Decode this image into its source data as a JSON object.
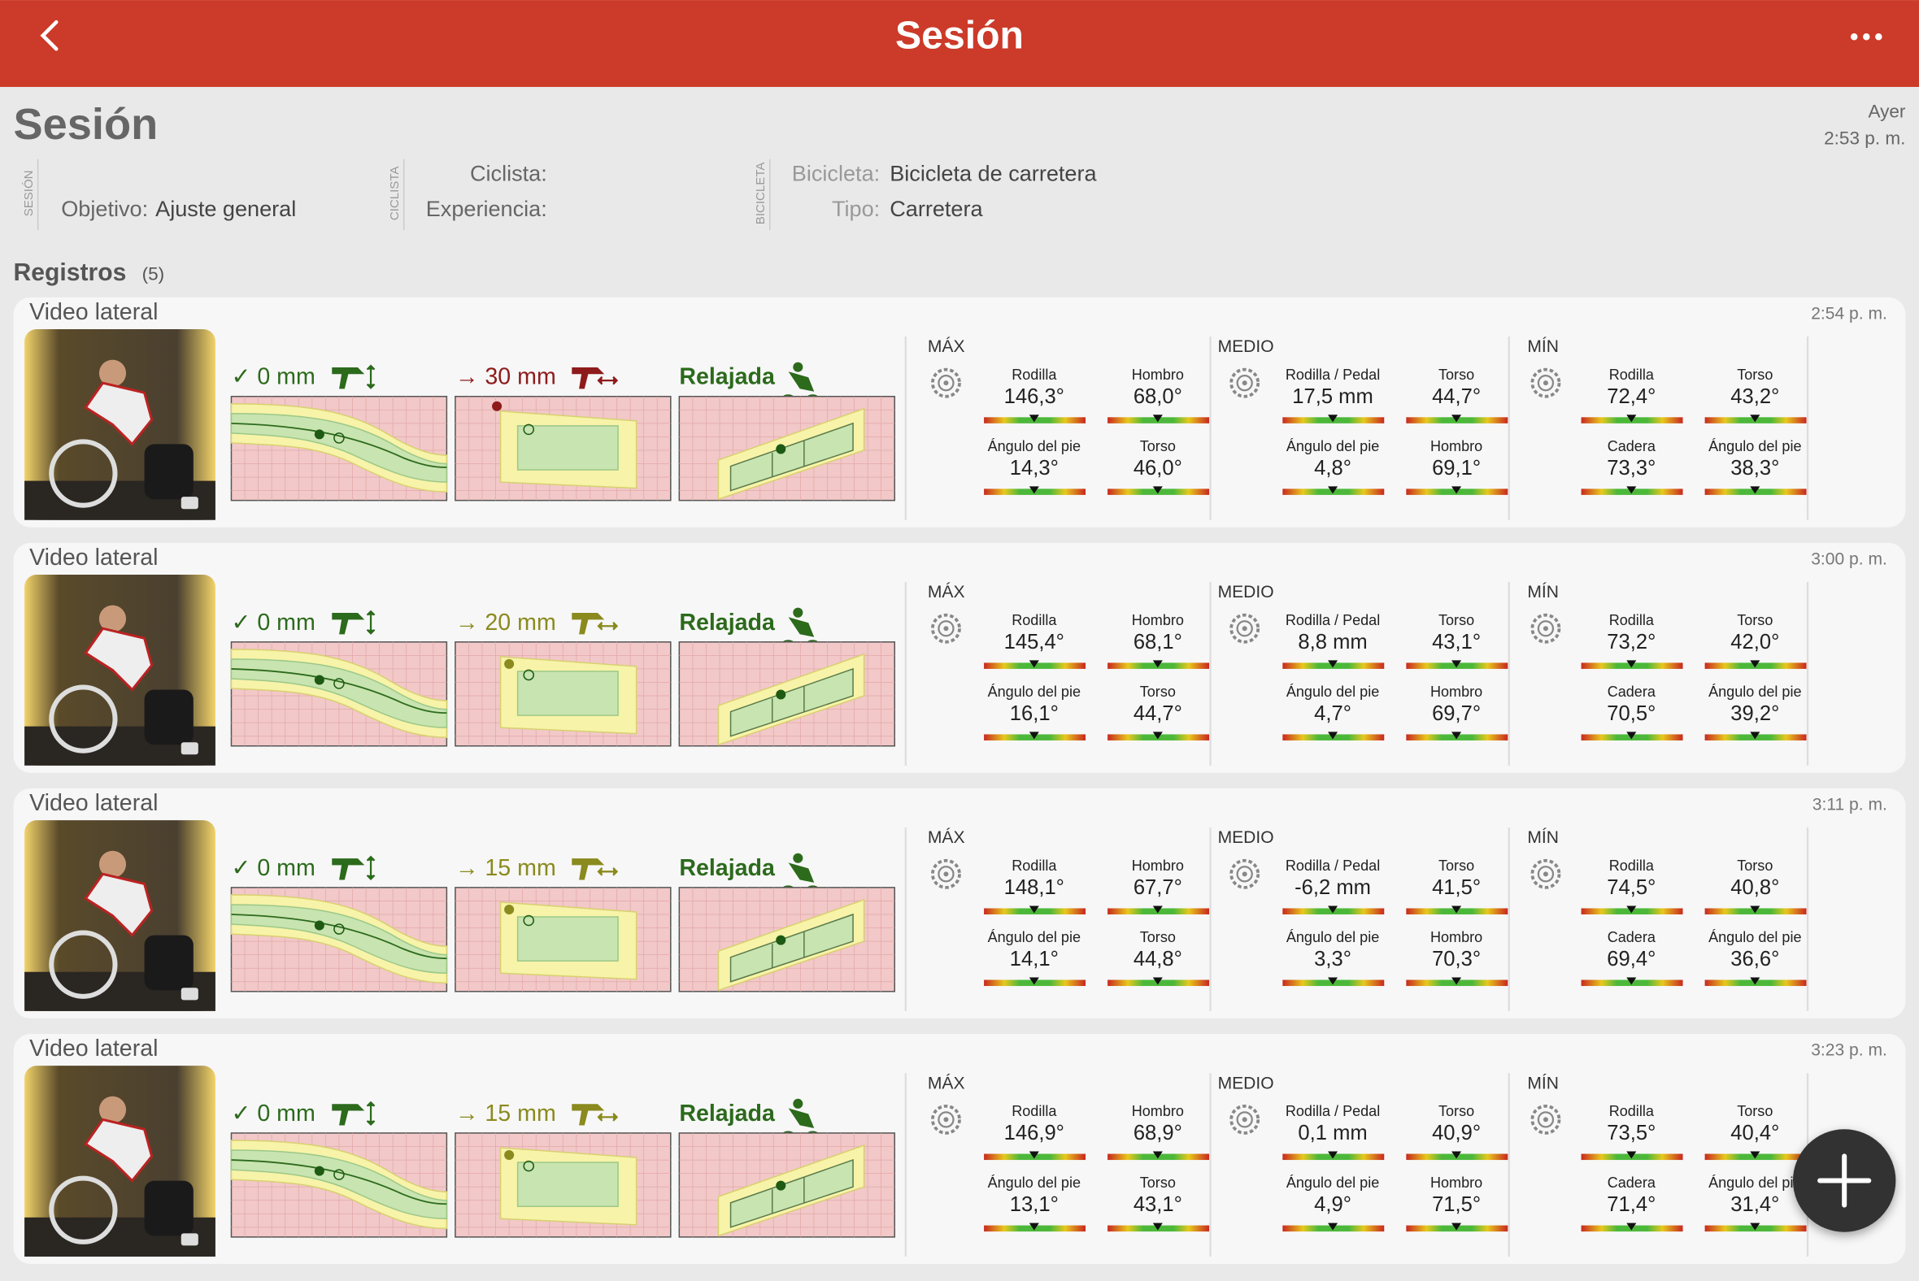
{
  "header": {
    "title": "Sesión"
  },
  "session": {
    "title": "Sesión",
    "date": "Ayer",
    "time": "2:53 p. m.",
    "sections": [
      {
        "tag": "SESIÓN",
        "fields": [
          {
            "label": "Objetivo:",
            "value": "Ajuste general"
          }
        ]
      },
      {
        "tag": "CICLISTA",
        "fields": [
          {
            "label": "Ciclista:"
          },
          {
            "label": "Experiencia:"
          }
        ]
      },
      {
        "tag": "BICICLETA",
        "fields": [
          {
            "label": "Bicicleta:",
            "value": "Bicicleta de carretera"
          },
          {
            "label": "Tipo:",
            "value": "Carretera"
          }
        ]
      }
    ]
  },
  "records_title": "Registros",
  "records_count": "(5)",
  "records": [
    {
      "title": "Video lateral",
      "time": "2:54 p. m.",
      "height": "✓ 0 mm",
      "setback": "→ 30 mm",
      "setback_color": "#8e1b1b",
      "posture": "Relajada",
      "groups": [
        {
          "name": "MÁX",
          "metrics": [
            {
              "label": "Rodilla",
              "value": "146,3°"
            },
            {
              "label": "Hombro",
              "value": "68,0°"
            },
            {
              "label": "Ángulo del pie",
              "value": "14,3°"
            },
            {
              "label": "Torso",
              "value": "46,0°"
            }
          ]
        },
        {
          "name": "MEDIO",
          "metrics": [
            {
              "label": "Rodilla / Pedal",
              "value": "17,5 mm"
            },
            {
              "label": "Torso",
              "value": "44,7°"
            },
            {
              "label": "Ángulo del pie",
              "value": "4,8°"
            },
            {
              "label": "Hombro",
              "value": "69,1°"
            }
          ]
        },
        {
          "name": "MÍN",
          "metrics": [
            {
              "label": "Rodilla",
              "value": "72,4°"
            },
            {
              "label": "Torso",
              "value": "43,2°"
            },
            {
              "label": "Cadera",
              "value": "73,3°"
            },
            {
              "label": "Ángulo del pie",
              "value": "38,3°"
            }
          ]
        }
      ]
    },
    {
      "title": "Video lateral",
      "time": "3:00 p. m.",
      "height": "✓ 0 mm",
      "setback": "→ 20 mm",
      "setback_color": "#8a8a1e",
      "posture": "Relajada",
      "groups": [
        {
          "name": "MÁX",
          "metrics": [
            {
              "label": "Rodilla",
              "value": "145,4°"
            },
            {
              "label": "Hombro",
              "value": "68,1°"
            },
            {
              "label": "Ángulo del pie",
              "value": "16,1°"
            },
            {
              "label": "Torso",
              "value": "44,7°"
            }
          ]
        },
        {
          "name": "MEDIO",
          "metrics": [
            {
              "label": "Rodilla / Pedal",
              "value": "8,8 mm"
            },
            {
              "label": "Torso",
              "value": "43,1°"
            },
            {
              "label": "Ángulo del pie",
              "value": "4,7°"
            },
            {
              "label": "Hombro",
              "value": "69,7°"
            }
          ]
        },
        {
          "name": "MÍN",
          "metrics": [
            {
              "label": "Rodilla",
              "value": "73,2°"
            },
            {
              "label": "Torso",
              "value": "42,0°"
            },
            {
              "label": "Cadera",
              "value": "70,5°"
            },
            {
              "label": "Ángulo del pie",
              "value": "39,2°"
            }
          ]
        }
      ]
    },
    {
      "title": "Video lateral",
      "time": "3:11 p. m.",
      "height": "✓ 0 mm",
      "setback": "→ 15 mm",
      "setback_color": "#8a8a1e",
      "posture": "Relajada",
      "groups": [
        {
          "name": "MÁX",
          "metrics": [
            {
              "label": "Rodilla",
              "value": "148,1°"
            },
            {
              "label": "Hombro",
              "value": "67,7°"
            },
            {
              "label": "Ángulo del pie",
              "value": "14,1°"
            },
            {
              "label": "Torso",
              "value": "44,8°"
            }
          ]
        },
        {
          "name": "MEDIO",
          "metrics": [
            {
              "label": "Rodilla / Pedal",
              "value": "-6,2 mm"
            },
            {
              "label": "Torso",
              "value": "41,5°"
            },
            {
              "label": "Ángulo del pie",
              "value": "3,3°"
            },
            {
              "label": "Hombro",
              "value": "70,3°"
            }
          ]
        },
        {
          "name": "MÍN",
          "metrics": [
            {
              "label": "Rodilla",
              "value": "74,5°"
            },
            {
              "label": "Torso",
              "value": "40,8°"
            },
            {
              "label": "Cadera",
              "value": "69,4°"
            },
            {
              "label": "Ángulo del pie",
              "value": "36,6°"
            }
          ]
        }
      ]
    },
    {
      "title": "Video lateral",
      "time": "3:23 p. m.",
      "height": "✓ 0 mm",
      "setback": "→ 15 mm",
      "setback_color": "#8a8a1e",
      "posture": "Relajada",
      "groups": [
        {
          "name": "MÁX",
          "metrics": [
            {
              "label": "Rodilla",
              "value": "146,9°"
            },
            {
              "label": "Hombro",
              "value": "68,9°"
            },
            {
              "label": "Ángulo del pie",
              "value": "13,1°"
            },
            {
              "label": "Torso",
              "value": "43,1°"
            }
          ]
        },
        {
          "name": "MEDIO",
          "metrics": [
            {
              "label": "Rodilla / Pedal",
              "value": "0,1 mm"
            },
            {
              "label": "Torso",
              "value": "40,9°"
            },
            {
              "label": "Ángulo del pie",
              "value": "4,9°"
            },
            {
              "label": "Hombro",
              "value": "71,5°"
            }
          ]
        },
        {
          "name": "MÍN",
          "metrics": [
            {
              "label": "Rodilla",
              "value": "73,5°"
            },
            {
              "label": "Torso",
              "value": "40,4°"
            },
            {
              "label": "Cadera",
              "value": "71,4°"
            },
            {
              "label": "Ángulo del pie",
              "value": "31,4°"
            }
          ]
        }
      ]
    }
  ]
}
